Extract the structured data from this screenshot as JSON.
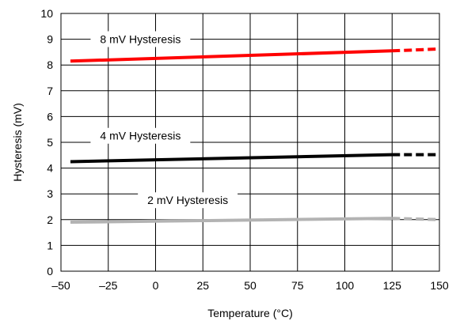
{
  "chart_data": {
    "type": "line",
    "title": "",
    "xlabel": "Temperature (°C)",
    "ylabel": "Hysteresis (mV)",
    "xlim": [
      -50,
      150
    ],
    "ylim": [
      0,
      10
    ],
    "xticks": [
      -50,
      -25,
      0,
      25,
      50,
      75,
      100,
      125,
      150
    ],
    "yticks": [
      0,
      1,
      2,
      3,
      4,
      5,
      6,
      7,
      8,
      9,
      10
    ],
    "xtick_labels": [
      "–50",
      "–25",
      "0",
      "25",
      "50",
      "75",
      "100",
      "125",
      "150"
    ],
    "ytick_labels": [
      "0",
      "1",
      "2",
      "3",
      "4",
      "5",
      "6",
      "7",
      "8",
      "9",
      "10"
    ],
    "grid": true,
    "legend": "none",
    "series": [
      {
        "name": "8 mV Hysteresis",
        "color": "#ff0000",
        "label_at": [
          -8,
          8.85
        ],
        "solid": {
          "x": [
            -45,
            125
          ],
          "y": [
            8.15,
            8.55
          ]
        },
        "dashed": {
          "x": [
            125,
            150
          ],
          "y": [
            8.55,
            8.62
          ]
        }
      },
      {
        "name": "4 mV Hysteresis",
        "color": "#000000",
        "label_at": [
          -8,
          5.1
        ],
        "solid": {
          "x": [
            -45,
            125
          ],
          "y": [
            4.25,
            4.52
          ]
        },
        "dashed": {
          "x": [
            125,
            150
          ],
          "y": [
            4.52,
            4.52
          ]
        }
      },
      {
        "name": "2 mV Hysteresis",
        "color": "#b3b3b3",
        "label_at": [
          17,
          2.6
        ],
        "solid": {
          "x": [
            -45,
            125
          ],
          "y": [
            1.9,
            2.05
          ]
        },
        "dashed": {
          "x": [
            125,
            150
          ],
          "y": [
            2.05,
            2.0
          ]
        }
      }
    ]
  }
}
